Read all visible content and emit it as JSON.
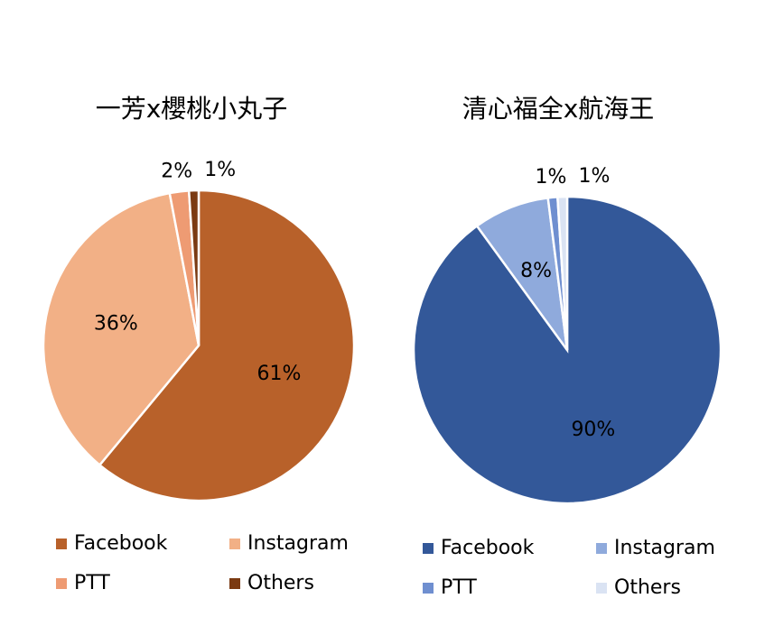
{
  "chart_data": [
    {
      "type": "pie",
      "title": "一芳x櫻桃小丸子",
      "categories": [
        "Facebook",
        "Instagram",
        "PTT",
        "Others"
      ],
      "values": [
        61,
        36,
        2,
        1
      ],
      "value_labels": [
        "61%",
        "36%",
        "2%",
        "1%"
      ],
      "colors": [
        "#b8612a",
        "#f2b086",
        "#ee9b73",
        "#7b3a12"
      ]
    },
    {
      "type": "pie",
      "title": "清心福全x航海王",
      "categories": [
        "Facebook",
        "Instagram",
        "PTT",
        "Others"
      ],
      "values": [
        90,
        8,
        1,
        1
      ],
      "value_labels": [
        "90%",
        "8%",
        "1%",
        "1%"
      ],
      "colors": [
        "#335899",
        "#8faadc",
        "#6f8fd0",
        "#dae3f3"
      ]
    }
  ]
}
